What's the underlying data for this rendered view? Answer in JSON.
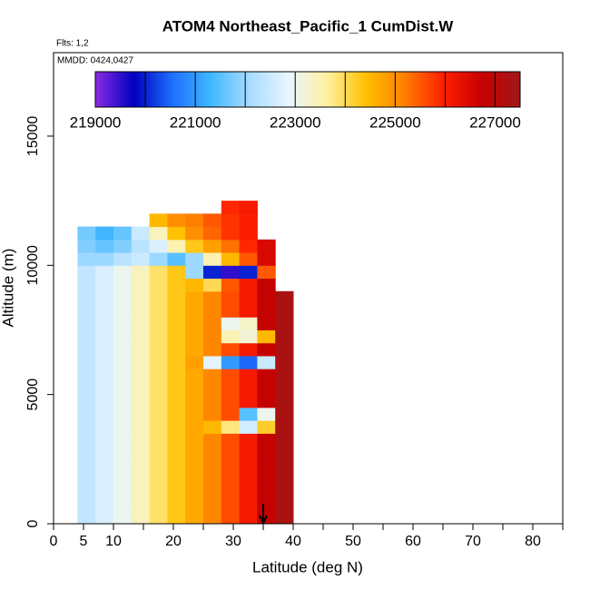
{
  "chart_data": {
    "type": "heatmap",
    "title": "ATOM4 Northeast_Pacific_1 CumDist.W",
    "subtitle": "Flts: 1,2",
    "annotation": "MMDD: 0424,0427",
    "xlabel": "Latitude (deg N)",
    "ylabel": "Altitude (m)",
    "xlim": [
      0,
      85
    ],
    "ylim": [
      0,
      18230
    ],
    "xticks": [
      0,
      5,
      10,
      20,
      30,
      40,
      50,
      60,
      70,
      80
    ],
    "xminor_ticks": [
      15,
      25,
      35,
      45,
      55,
      65,
      75,
      85
    ],
    "yticks": [
      0,
      5000,
      10000,
      15000
    ],
    "arrow_x": 35,
    "colorbar": {
      "lim": [
        219000,
        227500
      ],
      "ticks": [
        219000,
        221000,
        223000,
        225000,
        227000
      ],
      "breaks": [
        220000,
        221000,
        222000,
        223000,
        224000,
        225000,
        226000,
        227000
      ],
      "colors": [
        "#8a2be2",
        "#0000c0",
        "#1e6fff",
        "#40b8ff",
        "#a8dcff",
        "#e8f6ff",
        "#fff0a0",
        "#ffc000",
        "#ff8000",
        "#ff2000",
        "#c80000",
        "#a01818"
      ]
    },
    "x_edges": [
      4,
      7,
      10,
      13,
      16,
      19,
      22,
      25,
      28,
      31,
      34,
      37,
      40
    ],
    "y_edges": [
      0,
      500,
      1000,
      1500,
      2000,
      2500,
      3000,
      3500,
      4000,
      4500,
      5000,
      5500,
      6000,
      6500,
      7000,
      7500,
      8000,
      8500,
      9000,
      9500,
      10000,
      10500,
      11000,
      11500,
      12000,
      12500
    ],
    "z": [
      [
        222400,
        222700,
        223000,
        223400,
        223900,
        224300,
        224700,
        225100,
        225600,
        226100,
        226800,
        227300
      ],
      [
        222400,
        222700,
        223000,
        223400,
        223900,
        224300,
        224700,
        225100,
        225600,
        226100,
        226800,
        227300
      ],
      [
        222400,
        222700,
        223000,
        223400,
        223900,
        224300,
        224700,
        225100,
        225600,
        226100,
        226800,
        227300
      ],
      [
        222400,
        222700,
        223000,
        223400,
        223900,
        224300,
        224700,
        225100,
        225600,
        226100,
        226800,
        227300
      ],
      [
        222400,
        222700,
        223000,
        223400,
        223900,
        224300,
        224700,
        225100,
        225600,
        226100,
        226800,
        227300
      ],
      [
        222400,
        222700,
        223000,
        223400,
        223900,
        224300,
        224700,
        225100,
        225600,
        226100,
        226800,
        227300
      ],
      [
        222400,
        222700,
        223000,
        223400,
        223900,
        224300,
        224700,
        225100,
        225600,
        226100,
        226800,
        227300
      ],
      [
        222400,
        222700,
        223000,
        223400,
        223900,
        224300,
        224700,
        224500,
        223800,
        222600,
        224200,
        227300
      ],
      [
        222400,
        222700,
        223000,
        223400,
        223900,
        224300,
        224700,
        225100,
        225600,
        221500,
        223000,
        227300
      ],
      [
        222400,
        222700,
        223000,
        223400,
        223900,
        224300,
        224700,
        225100,
        225600,
        226100,
        226800,
        227300
      ],
      [
        222400,
        222700,
        223000,
        223400,
        223900,
        224300,
        224700,
        225100,
        225600,
        226100,
        226800,
        227300
      ],
      [
        222400,
        222700,
        223000,
        223400,
        223900,
        224300,
        224700,
        225100,
        225600,
        226100,
        226800,
        227300
      ],
      [
        222400,
        222700,
        223000,
        223400,
        223900,
        224300,
        224800,
        222800,
        221000,
        220500,
        222500,
        227300
      ],
      [
        222400,
        222700,
        223000,
        223400,
        223900,
        224300,
        224700,
        225100,
        225600,
        226100,
        226800,
        227300
      ],
      [
        222400,
        222700,
        223000,
        223400,
        223900,
        224300,
        224700,
        225100,
        223500,
        223200,
        224500,
        227300
      ],
      [
        222400,
        222700,
        223000,
        223400,
        223900,
        224300,
        224700,
        225100,
        223000,
        223300,
        226800,
        227300
      ],
      [
        222400,
        222700,
        223000,
        223400,
        223900,
        224300,
        224700,
        225100,
        225600,
        226100,
        226800,
        227300
      ],
      [
        222400,
        222700,
        223000,
        223400,
        223900,
        224300,
        224700,
        225100,
        225600,
        226100,
        226800,
        227300
      ],
      [
        222400,
        222700,
        223000,
        223400,
        223900,
        224300,
        224500,
        224000,
        225500,
        226100,
        226800,
        null
      ],
      [
        222400,
        222700,
        223000,
        223400,
        223900,
        224300,
        222000,
        220000,
        219500,
        220000,
        225500,
        null
      ],
      [
        222000,
        222000,
        222300,
        222500,
        222000,
        221500,
        222000,
        223500,
        224500,
        225500,
        226500,
        null
      ],
      [
        221800,
        221600,
        221800,
        222300,
        222700,
        223500,
        224300,
        224800,
        225300,
        225900,
        226500,
        null
      ],
      [
        221700,
        221300,
        221600,
        222500,
        223400,
        224400,
        225000,
        225400,
        225800,
        226000,
        null,
        null
      ],
      [
        null,
        null,
        null,
        null,
        224500,
        225000,
        225200,
        225500,
        225800,
        226000,
        null,
        null
      ],
      [
        null,
        null,
        null,
        null,
        null,
        null,
        null,
        null,
        225900,
        226100,
        null,
        null
      ]
    ]
  }
}
